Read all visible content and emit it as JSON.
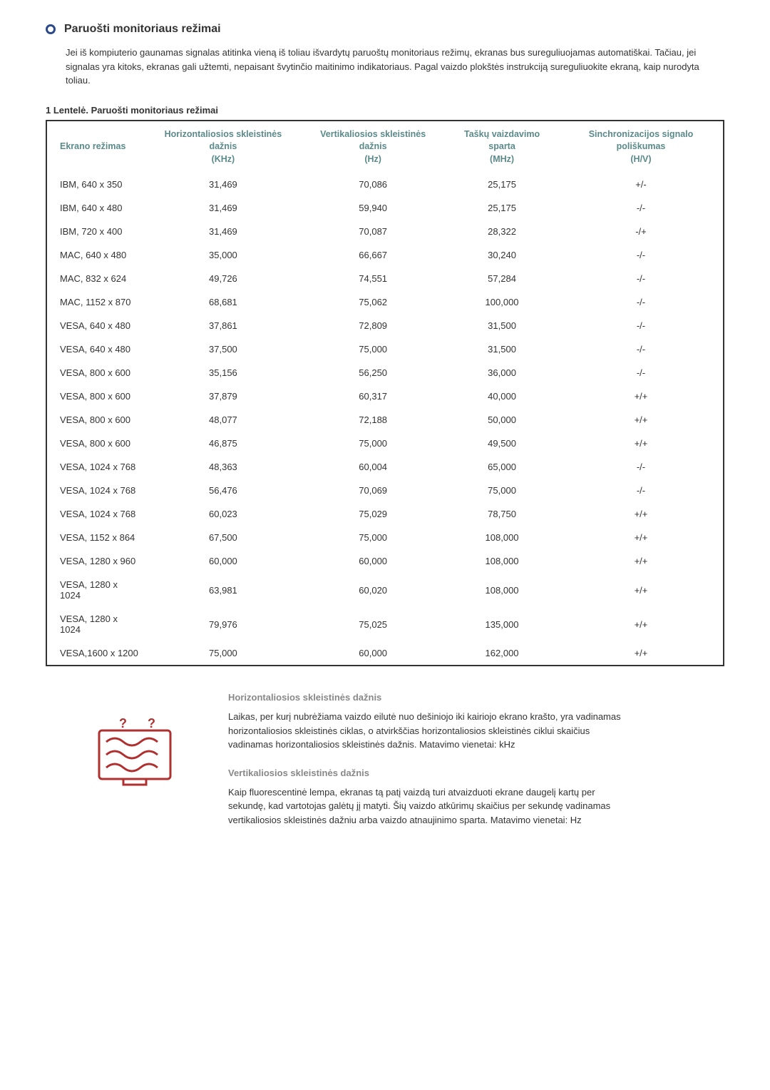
{
  "heading": "Paruošti monitoriaus režimai",
  "intro": "Jei iš kompiuterio gaunamas signalas atitinka vieną iš toliau išvardytų paruoštų monitoriaus režimų, ekranas bus sureguliuojamas automatiškai. Tačiau, jei signalas yra kitoks, ekranas gali užtemti, nepaisant švytinčio maitinimo indikatoriaus. Pagal vaizdo plokštės instrukciją sureguliuokite ekraną, kaip nurodyta toliau.",
  "table_caption": "1 Lentelė. Paruošti monitoriaus režimai",
  "columns": {
    "c0": {
      "line1": "Ekrano režimas",
      "line2": ""
    },
    "c1": {
      "line1": "Horizontaliosios skleistinės dažnis",
      "line2": "(KHz)"
    },
    "c2": {
      "line1": "Vertikaliosios skleistinės dažnis",
      "line2": "(Hz)"
    },
    "c3": {
      "line1": "Taškų vaizdavimo sparta",
      "line2": "(MHz)"
    },
    "c4": {
      "line1": "Sinchronizacijos signalo poliškumas",
      "line2": "(H/V)"
    }
  },
  "rows": [
    {
      "mode": "IBM, 640 x 350",
      "h": "31,469",
      "v": "70,086",
      "p": "25,175",
      "s": "+/-"
    },
    {
      "mode": "IBM, 640 x 480",
      "h": "31,469",
      "v": "59,940",
      "p": "25,175",
      "s": "-/-"
    },
    {
      "mode": "IBM, 720 x 400",
      "h": "31,469",
      "v": "70,087",
      "p": "28,322",
      "s": "-/+"
    },
    {
      "mode": "MAC, 640 x 480",
      "h": "35,000",
      "v": "66,667",
      "p": "30,240",
      "s": "-/-"
    },
    {
      "mode": "MAC, 832 x 624",
      "h": "49,726",
      "v": "74,551",
      "p": "57,284",
      "s": "-/-"
    },
    {
      "mode": "MAC, 1152 x 870",
      "h": "68,681",
      "v": "75,062",
      "p": "100,000",
      "s": "-/-"
    },
    {
      "mode": "VESA, 640 x 480",
      "h": "37,861",
      "v": "72,809",
      "p": "31,500",
      "s": "-/-"
    },
    {
      "mode": "VESA, 640 x 480",
      "h": "37,500",
      "v": "75,000",
      "p": "31,500",
      "s": "-/-"
    },
    {
      "mode": "VESA, 800 x 600",
      "h": "35,156",
      "v": "56,250",
      "p": "36,000",
      "s": "-/-"
    },
    {
      "mode": "VESA, 800 x 600",
      "h": "37,879",
      "v": "60,317",
      "p": "40,000",
      "s": "+/+"
    },
    {
      "mode": "VESA, 800 x 600",
      "h": "48,077",
      "v": "72,188",
      "p": "50,000",
      "s": "+/+"
    },
    {
      "mode": "VESA, 800 x 600",
      "h": "46,875",
      "v": "75,000",
      "p": "49,500",
      "s": "+/+"
    },
    {
      "mode": "VESA, 1024 x 768",
      "h": "48,363",
      "v": "60,004",
      "p": "65,000",
      "s": "-/-"
    },
    {
      "mode": "VESA, 1024 x 768",
      "h": "56,476",
      "v": "70,069",
      "p": "75,000",
      "s": "-/-"
    },
    {
      "mode": "VESA, 1024 x 768",
      "h": "60,023",
      "v": "75,029",
      "p": "78,750",
      "s": "+/+"
    },
    {
      "mode": "VESA, 1152 x 864",
      "h": "67,500",
      "v": "75,000",
      "p": "108,000",
      "s": "+/+"
    },
    {
      "mode": "VESA, 1280 x 960",
      "h": "60,000",
      "v": "60,000",
      "p": "108,000",
      "s": "+/+"
    },
    {
      "mode": "VESA, 1280 x 1024",
      "h": "63,981",
      "v": "60,020",
      "p": "108,000",
      "s": "+/+"
    },
    {
      "mode": "VESA, 1280 x 1024",
      "h": "79,976",
      "v": "75,025",
      "p": "135,000",
      "s": "+/+"
    },
    {
      "mode": "VESA,1600 x 1200",
      "h": "75,000",
      "v": "60,000",
      "p": "162,000",
      "s": "+/+"
    }
  ],
  "hfreq": {
    "title": "Horizontaliosios skleistinės dažnis",
    "body": "Laikas, per kurį nubrėžiama vaizdo eilutė nuo dešiniojo iki kairiojo ekrano krašto, yra vadinamas horizontaliosios skleistinės ciklas, o atvirkščias horizontaliosios skleistinės ciklui skaičius vadinamas horizontaliosios skleistinės dažnis. Matavimo vienetai: kHz"
  },
  "vfreq": {
    "title": "Vertikaliosios skleistinės dažnis",
    "body": "Kaip fluorescentinė lempa, ekranas tą patį vaizdą turi atvaizduoti ekrane daugelį kartų per sekundę, kad vartotojas galėtų jį matyti. Šių vaizdo atkūrimų skaičius per sekundę vadinamas vertikaliosios skleistinės dažniu arba vaizdo atnaujinimo sparta. Matavimo vienetai: Hz"
  },
  "colors": {
    "header_text": "#5a8a8a",
    "border": "#333333",
    "bullet": "#2a4a8a",
    "icon_stroke": "#b03030"
  }
}
